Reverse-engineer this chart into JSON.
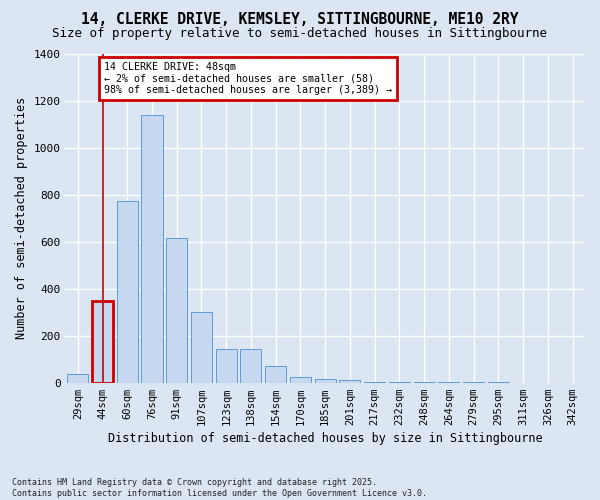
{
  "title": "14, CLERKE DRIVE, KEMSLEY, SITTINGBOURNE, ME10 2RY",
  "subtitle": "Size of property relative to semi-detached houses in Sittingbourne",
  "xlabel": "Distribution of semi-detached houses by size in Sittingbourne",
  "ylabel": "Number of semi-detached properties",
  "categories": [
    "29sqm",
    "44sqm",
    "60sqm",
    "76sqm",
    "91sqm",
    "107sqm",
    "123sqm",
    "138sqm",
    "154sqm",
    "170sqm",
    "185sqm",
    "201sqm",
    "217sqm",
    "232sqm",
    "248sqm",
    "264sqm",
    "279sqm",
    "295sqm",
    "311sqm",
    "326sqm",
    "342sqm"
  ],
  "values": [
    35,
    350,
    775,
    1140,
    615,
    300,
    145,
    145,
    70,
    25,
    15,
    10,
    5,
    3,
    2,
    2,
    1,
    1,
    0,
    0,
    0
  ],
  "bar_color": "#c5d8f0",
  "bar_edge_color": "#5b9bd5",
  "highlight_bar_index": 1,
  "highlight_edge_color": "#cc0000",
  "vline_color": "#cc0000",
  "ylim": [
    0,
    1400
  ],
  "yticks": [
    0,
    200,
    400,
    600,
    800,
    1000,
    1200,
    1400
  ],
  "annotation_text": "14 CLERKE DRIVE: 48sqm\n← 2% of semi-detached houses are smaller (58)\n98% of semi-detached houses are larger (3,389) →",
  "ann_box_fc": "#ffffff",
  "ann_box_ec": "#cc0000",
  "bg_color": "#dce6f3",
  "grid_color": "#ffffff",
  "footer_line1": "Contains HM Land Registry data © Crown copyright and database right 2025.",
  "footer_line2": "Contains public sector information licensed under the Open Government Licence v3.0."
}
